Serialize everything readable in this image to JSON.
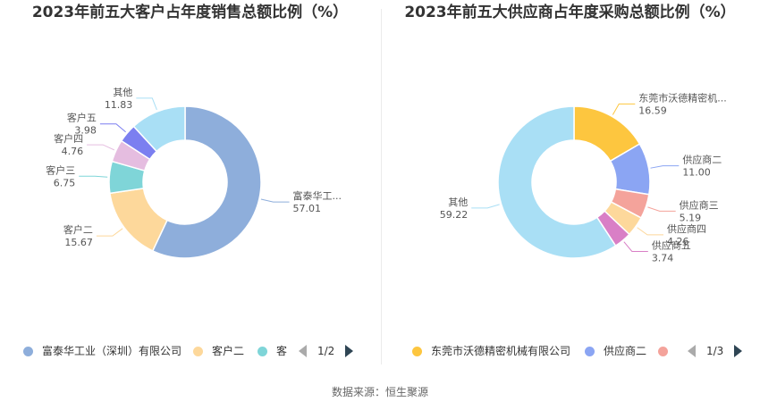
{
  "chart_data": [
    {
      "type": "pie",
      "title": "2023年前五大客户占年度销售总额比例（%）",
      "slices": [
        {
          "name": "富泰华工业（深圳）有限公司",
          "label": "富泰华工...",
          "value": 57.01,
          "value_text": "57.01",
          "color": "#8eaedb"
        },
        {
          "name": "客户二",
          "label": "客户二",
          "value": 15.67,
          "value_text": "15.67",
          "color": "#fdd89b"
        },
        {
          "name": "客户三",
          "label": "客户三",
          "value": 6.75,
          "value_text": "6.75",
          "color": "#7fd5d8"
        },
        {
          "name": "客户四",
          "label": "客户四",
          "value": 4.76,
          "value_text": "4.76",
          "color": "#e5bde0"
        },
        {
          "name": "客户五",
          "label": "客户五",
          "value": 3.98,
          "value_text": "3.98",
          "color": "#7b7ff0"
        },
        {
          "name": "其他",
          "label": "其他",
          "value": 11.83,
          "value_text": "11.83",
          "color": "#a9dff5"
        }
      ],
      "legend": {
        "items": [
          {
            "label": "富泰华工业（深圳）有限公司",
            "color": "#8eaedb"
          },
          {
            "label": "客户二",
            "color": "#fdd89b"
          },
          {
            "label": "客",
            "color": "#7fd5d8"
          }
        ],
        "page": "1/2"
      }
    },
    {
      "type": "pie",
      "title": "2023年前五大供应商占年度采购总额比例（%）",
      "slices": [
        {
          "name": "东莞市沃德精密机械有限公司",
          "label": "东莞市沃德精密机...",
          "value": 16.59,
          "value_text": "16.59",
          "color": "#fdc63f"
        },
        {
          "name": "供应商二",
          "label": "供应商二",
          "value": 11.0,
          "value_text": "11.00",
          "color": "#8ba5f3"
        },
        {
          "name": "供应商三",
          "label": "供应商三",
          "value": 5.19,
          "value_text": "5.19",
          "color": "#f4a39b"
        },
        {
          "name": "供应商四",
          "label": "供应商四",
          "value": 4.26,
          "value_text": "4.26",
          "color": "#fdd89b"
        },
        {
          "name": "供应商五",
          "label": "供应商五",
          "value": 3.74,
          "value_text": "3.74",
          "color": "#d97fc6"
        },
        {
          "name": "其他",
          "label": "其他",
          "value": 59.22,
          "value_text": "59.22",
          "color": "#a9dff5"
        }
      ],
      "legend": {
        "items": [
          {
            "label": "东莞市沃德精密机械有限公司",
            "color": "#fdc63f"
          },
          {
            "label": "供应商二",
            "color": "#8ba5f3"
          },
          {
            "label": "",
            "color": "#f4a39b"
          }
        ],
        "page": "1/3"
      }
    }
  ],
  "source": "数据来源：恒生聚源"
}
